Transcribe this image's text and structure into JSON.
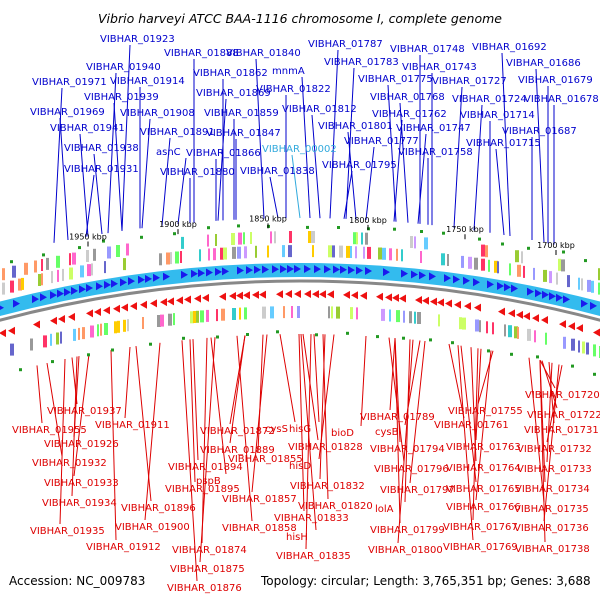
{
  "title": "Vibrio harveyi ATCC BAA-1116 chromosome I, complete genome",
  "footer": {
    "accession": "Accession: NC_009783",
    "summary": "Topology: circular; Length: 3,765,351 bp; Genes: 3,688"
  },
  "colors": {
    "forward_label": "#0000cc",
    "reverse_label": "#dd0000",
    "highlight_label": "#33aadd",
    "forward_arrow": "#1a1aee",
    "reverse_arrow": "#ee1111",
    "backbone": "#33bbee",
    "backbone_inner": "#888888"
  },
  "ticks": [
    {
      "label": "1950 kbp"
    },
    {
      "label": "1900 kbp"
    },
    {
      "label": "1850 kbp"
    },
    {
      "label": "1800 kbp"
    },
    {
      "label": "1750 kbp"
    },
    {
      "label": "1700 kbp"
    }
  ],
  "top_labels": [
    {
      "text": "VIBHAR_01923"
    },
    {
      "text": "VIBHAR_01888"
    },
    {
      "text": "VIBHAR_01840"
    },
    {
      "text": "VIBHAR_01787"
    },
    {
      "text": "VIBHAR_01748"
    },
    {
      "text": "VIBHAR_01692"
    },
    {
      "text": "VIBHAR_01940"
    },
    {
      "text": "VIBHAR_01862"
    },
    {
      "text": "mnmA"
    },
    {
      "text": "VIBHAR_01783"
    },
    {
      "text": "VIBHAR_01743"
    },
    {
      "text": "VIBHAR_01686"
    },
    {
      "text": "VIBHAR_01971"
    },
    {
      "text": "VIBHAR_01914"
    },
    {
      "text": "VIBHAR_01775"
    },
    {
      "text": "VIBHAR_01727"
    },
    {
      "text": "VIBHAR_01679"
    },
    {
      "text": "VIBHAR_01939"
    },
    {
      "text": "VIBHAR_01869"
    },
    {
      "text": "VIBHAR_01822"
    },
    {
      "text": "VIBHAR_01768"
    },
    {
      "text": "VIBHAR_01724"
    },
    {
      "text": "VIBHAR_01678"
    },
    {
      "text": "VIBHAR_01969"
    },
    {
      "text": "VIBHAR_01908"
    },
    {
      "text": "VIBHAR_01859"
    },
    {
      "text": "VIBHAR_01812"
    },
    {
      "text": "VIBHAR_01762"
    },
    {
      "text": "VIBHAR_01714"
    },
    {
      "text": "VIBHAR_01941"
    },
    {
      "text": "VIBHAR_01891"
    },
    {
      "text": "VIBHAR_01847"
    },
    {
      "text": "VIBHAR_01801"
    },
    {
      "text": "VIBHAR_01747"
    },
    {
      "text": "VIBHAR_01687"
    },
    {
      "text": "VIBHAR_01938"
    },
    {
      "text": "asnC"
    },
    {
      "text": "VIBHAR_01866"
    },
    {
      "text": "VIBHAR_00002",
      "highlight": true
    },
    {
      "text": "VIBHAR_01777"
    },
    {
      "text": "VIBHAR_01758"
    },
    {
      "text": "VIBHAR_01715"
    },
    {
      "text": "VIBHAR_01931"
    },
    {
      "text": "VIBHAR_01880"
    },
    {
      "text": "VIBHAR_01838"
    },
    {
      "text": "VIBHAR_01795"
    }
  ],
  "bottom_labels": [
    {
      "text": "VIBHAR_01720"
    },
    {
      "text": "VIBHAR_01937"
    },
    {
      "text": "VIBHAR_01789"
    },
    {
      "text": "VIBHAR_01755"
    },
    {
      "text": "VIBHAR_01722"
    },
    {
      "text": "VIBHAR_01955"
    },
    {
      "text": "VIBHAR_01911"
    },
    {
      "text": "VIBHAR_01872"
    },
    {
      "text": "cysS"
    },
    {
      "text": "hisG"
    },
    {
      "text": "bioD"
    },
    {
      "text": "cysB"
    },
    {
      "text": "VIBHAR_01761"
    },
    {
      "text": "VIBHAR_01731"
    },
    {
      "text": "VIBHAR_01926"
    },
    {
      "text": "VIBHAR_01889"
    },
    {
      "text": "VIBHAR_01828"
    },
    {
      "text": "VIBHAR_01794"
    },
    {
      "text": "VIBHAR_01763"
    },
    {
      "text": "VIBHAR_01732"
    },
    {
      "text": "VIBHAR_01932"
    },
    {
      "text": "VIBHAR_01894"
    },
    {
      "text": "VIBHAR_01855"
    },
    {
      "text": "hisD"
    },
    {
      "text": "VIBHAR_01796"
    },
    {
      "text": "VIBHAR_01764"
    },
    {
      "text": "VIBHAR_01733"
    },
    {
      "text": "VIBHAR_01933"
    },
    {
      "text": "pspB"
    },
    {
      "text": "VIBHAR_01895"
    },
    {
      "text": "VIBHAR_01832"
    },
    {
      "text": "VIBHAR_01797"
    },
    {
      "text": "VIBHAR_01765"
    },
    {
      "text": "VIBHAR_01734"
    },
    {
      "text": "VIBHAR_01934"
    },
    {
      "text": "VIBHAR_01857"
    },
    {
      "text": "VIBHAR_01896"
    },
    {
      "text": "VIBHAR_01820"
    },
    {
      "text": "lolA"
    },
    {
      "text": "VIBHAR_01766"
    },
    {
      "text": "VIBHAR_01735"
    },
    {
      "text": "VIBHAR_01833"
    },
    {
      "text": "VIBHAR_01935"
    },
    {
      "text": "VIBHAR_01900"
    },
    {
      "text": "VIBHAR_01858"
    },
    {
      "text": "VIBHAR_01799"
    },
    {
      "text": "VIBHAR_01767"
    },
    {
      "text": "VIBHAR_01736"
    },
    {
      "text": "hisH"
    },
    {
      "text": "VIBHAR_01912"
    },
    {
      "text": "VIBHAR_01874"
    },
    {
      "text": "VIBHAR_01800"
    },
    {
      "text": "VIBHAR_01769"
    },
    {
      "text": "VIBHAR_01738"
    },
    {
      "text": "VIBHAR_01835"
    },
    {
      "text": "VIBHAR_01875"
    },
    {
      "text": "VIBHAR_01876"
    }
  ]
}
